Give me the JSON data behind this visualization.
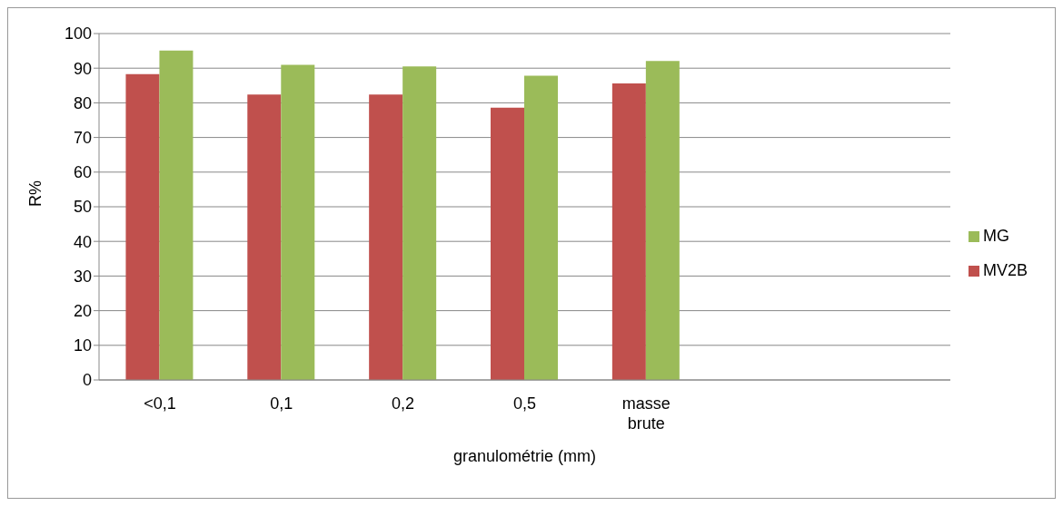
{
  "chart_data": {
    "type": "bar",
    "xlabel": "granulométrie (mm)",
    "ylabel": "R%",
    "categories": [
      "<0,1",
      "0,1",
      "0,2",
      "0,5",
      "masse brute",
      null,
      null
    ],
    "series": [
      {
        "name": "MV2B",
        "color": "#c0504d",
        "values": [
          88.3,
          82.4,
          82.4,
          78.6,
          85.6,
          null,
          null
        ]
      },
      {
        "name": "MG",
        "color": "#9bbb59",
        "values": [
          95.1,
          91,
          90.5,
          87.8,
          92.1,
          null,
          null
        ]
      }
    ],
    "ylim": [
      0,
      100
    ],
    "yticks": [
      0,
      10,
      20,
      30,
      40,
      50,
      60,
      70,
      80,
      90,
      100
    ],
    "grid": "y",
    "legend": "right"
  }
}
